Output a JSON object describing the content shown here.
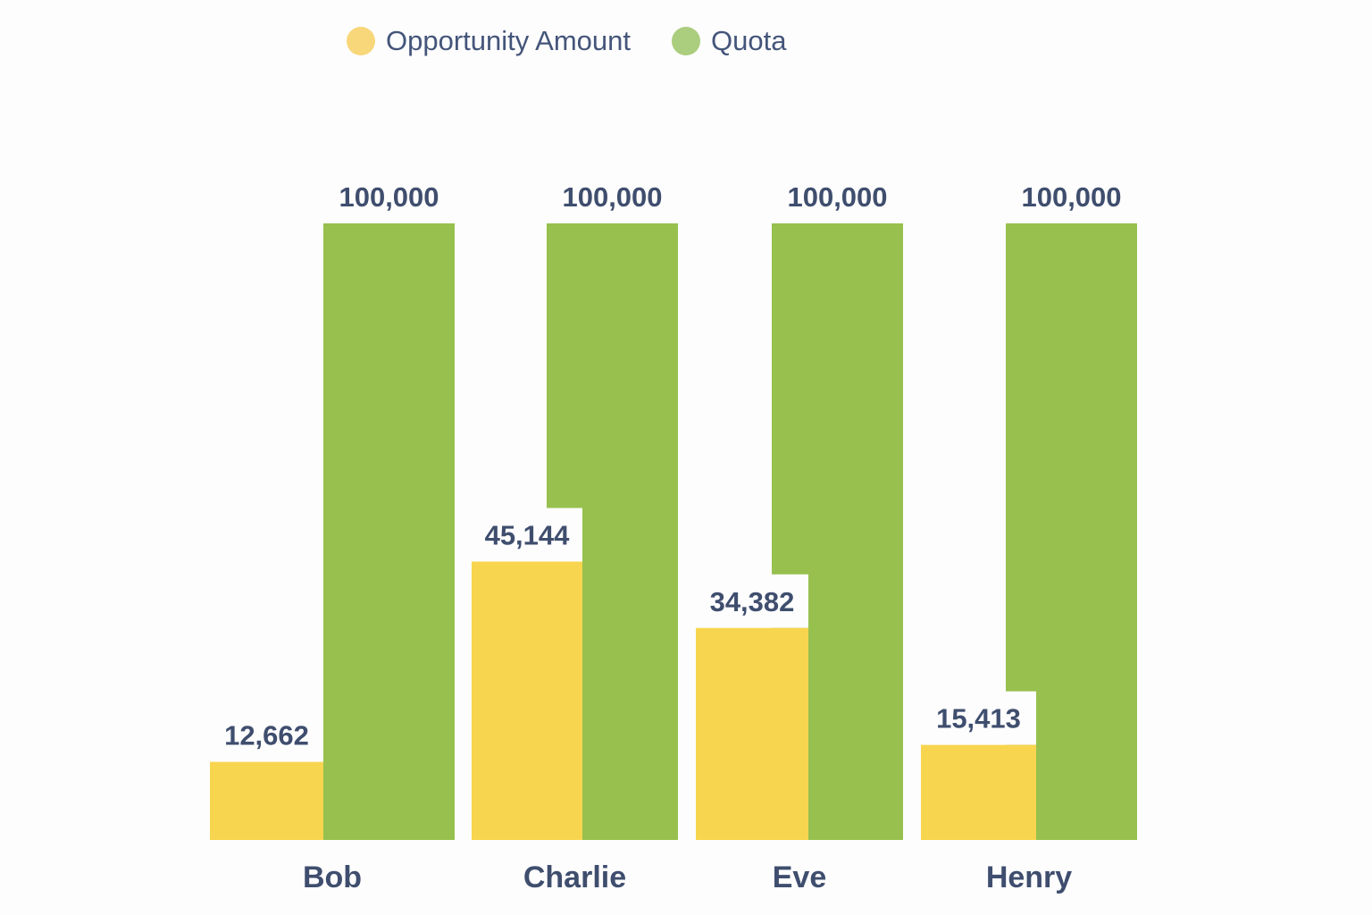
{
  "chart_data": {
    "type": "bar",
    "title": "",
    "xlabel": "",
    "ylabel": "",
    "ylim": [
      0,
      100000
    ],
    "grid": false,
    "legend_position": "top-center",
    "categories": [
      "Bob",
      "Charlie",
      "Eve",
      "Henry"
    ],
    "series": [
      {
        "name": "Opportunity Amount",
        "color": "#f8d54e",
        "values": [
          12662,
          45144,
          34382,
          15413
        ],
        "labels": [
          "12,662",
          "45,144",
          "34,382",
          "15,413"
        ]
      },
      {
        "name": "Quota",
        "color": "#97c04e",
        "values": [
          100000,
          100000,
          100000,
          100000
        ],
        "labels": [
          "100,000",
          "100,000",
          "100,000",
          "100,000"
        ]
      }
    ]
  },
  "legend_colors": [
    "#f8d77a",
    "#abcd7e"
  ],
  "text_color": "#3f4e6e"
}
